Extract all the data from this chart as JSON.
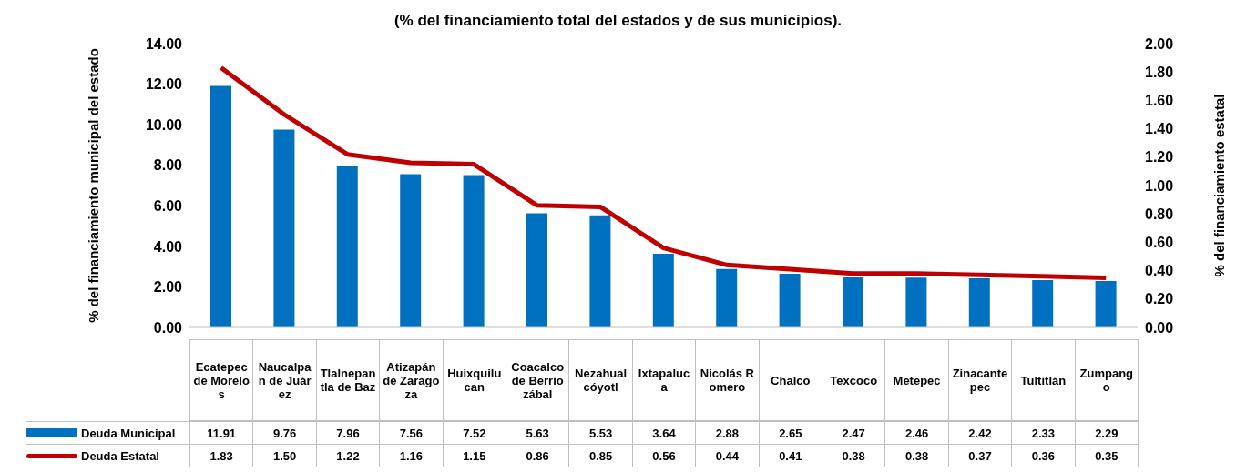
{
  "chart_data": {
    "type": "bar",
    "title": "(% del financiamiento total del estados y de sus municipios).",
    "ylabel": "% del financiamiento municipal del estado",
    "y2label": "% del financiamiento estatal",
    "categories": [
      "Ecatepec de Morelos",
      "Naucalpan de Juárez",
      "Tlalnepantla de Baz",
      "Atizapán de Zaragoza",
      "Huixquilucan",
      "Coacalco de Berriozábal",
      "Nezahualcóyotl",
      "Ixtapaluca",
      "Nicolás Romero",
      "Chalco",
      "Texcoco",
      "Metepec",
      "Zinacantepec",
      "Tultitlán",
      "Zumpango"
    ],
    "series": [
      {
        "name": "Deuda Municipal",
        "color": "#0070c0",
        "values": [
          11.91,
          9.76,
          7.96,
          7.56,
          7.52,
          5.63,
          5.53,
          3.64,
          2.88,
          2.65,
          2.47,
          2.46,
          2.42,
          2.33,
          2.29
        ],
        "value_labels": [
          "11.91",
          "9.76",
          "7.96",
          "7.56",
          "7.52",
          "5.63",
          "5.53",
          "3.64",
          "2.88",
          "2.65",
          "2.47",
          "2.46",
          "2.42",
          "2.33",
          "2.29"
        ]
      },
      {
        "name": "Deuda Estatal",
        "type": "line",
        "axis": "y2",
        "color": "#c00000",
        "values": [
          1.83,
          1.5,
          1.22,
          1.16,
          1.15,
          0.86,
          0.85,
          0.56,
          0.44,
          0.41,
          0.38,
          0.38,
          0.37,
          0.36,
          0.35
        ],
        "value_labels": [
          "1.83",
          "1.50",
          "1.22",
          "1.16",
          "1.15",
          "0.86",
          "0.85",
          "0.56",
          "0.44",
          "0.41",
          "0.38",
          "0.38",
          "0.37",
          "0.36",
          "0.35"
        ]
      }
    ],
    "ylim": [
      0,
      14
    ],
    "yticks": [
      {
        "value": 0,
        "label": "0.00"
      },
      {
        "value": 2,
        "label": "2.00"
      },
      {
        "value": 4,
        "label": "4.00"
      },
      {
        "value": 6,
        "label": "6.00"
      },
      {
        "value": 8,
        "label": "8.00"
      },
      {
        "value": 10,
        "label": "10.00"
      },
      {
        "value": 12,
        "label": "12.00"
      },
      {
        "value": 14,
        "label": "14.00"
      }
    ],
    "y2lim": [
      0,
      2
    ],
    "y2ticks": [
      {
        "value": 0,
        "label": "0.00"
      },
      {
        "value": 0.2,
        "label": "0.20"
      },
      {
        "value": 0.4,
        "label": "0.40"
      },
      {
        "value": 0.6,
        "label": "0.60"
      },
      {
        "value": 0.8,
        "label": "0.80"
      },
      {
        "value": 1,
        "label": "1.00"
      },
      {
        "value": 1.2,
        "label": "1.20"
      },
      {
        "value": 1.4,
        "label": "1.40"
      },
      {
        "value": 1.6,
        "label": "1.60"
      },
      {
        "value": 1.8,
        "label": "1.80"
      },
      {
        "value": 2,
        "label": "2.00"
      }
    ],
    "grid": false,
    "legend": "bottom",
    "marker": "none",
    "line_style": "solid"
  }
}
